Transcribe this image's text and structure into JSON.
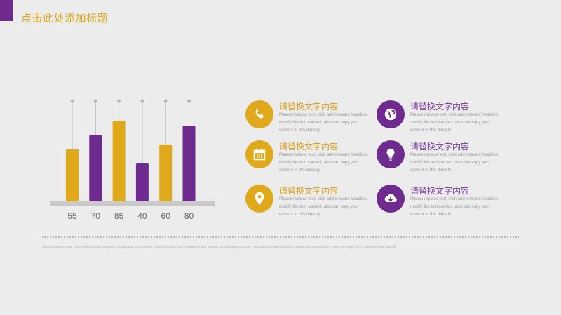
{
  "header": {
    "title": "点击此处添加标题",
    "accent": "#6e2a8e",
    "title_color": "#e0a91a"
  },
  "chart_data": {
    "type": "bar",
    "categories": [
      "55",
      "70",
      "85",
      "40",
      "60",
      "80"
    ],
    "values": [
      55,
      70,
      85,
      40,
      60,
      80
    ],
    "colors": [
      "#e0a91a",
      "#6e2a8e",
      "#e0a91a",
      "#6e2a8e",
      "#e0a91a",
      "#6e2a8e"
    ],
    "ylim": [
      0,
      100
    ],
    "xlabel": "",
    "ylabel": "",
    "title": "",
    "grid": false
  },
  "items": [
    {
      "title": "请替换文字内容",
      "desc": "Please replace text, click add relevant headline, modify the text content, also can copy your content to this directly.",
      "icon": "phone-icon",
      "color": "#e0a91a"
    },
    {
      "title": "请替换文字内容",
      "desc": "Please replace text, click add relevant headline, modify the text content, also can copy your content to this directly.",
      "icon": "globe-icon",
      "color": "#6e2a8e"
    },
    {
      "title": "请替换文字内容",
      "desc": "Please replace text, click add relevant headline, modify the text content, also can copy your content to this directly.",
      "icon": "calendar-icon",
      "color": "#e0a91a"
    },
    {
      "title": "请替换文字内容",
      "desc": "Please replace text, click add relevant headline, modify the text content, also can copy your content to this directly.",
      "icon": "lightbulb-icon",
      "color": "#6e2a8e"
    },
    {
      "title": "请替换文字内容",
      "desc": "Please replace text, click add relevant headline, modify the text content, also can copy your content to this directly.",
      "icon": "location-pin-icon",
      "color": "#e0a91a"
    },
    {
      "title": "请替换文字内容",
      "desc": "Please replace text, click add relevant headline, modify the text content, also can copy your content to this directly.",
      "icon": "cloud-download-icon",
      "color": "#6e2a8e"
    }
  ],
  "footer": {
    "text": "Please replace text, click add relevant headline, modify the text content, also can copy your content to this directly. Please replace text, click add relevant headline, modify the text content, also can copy your content to this directly."
  }
}
